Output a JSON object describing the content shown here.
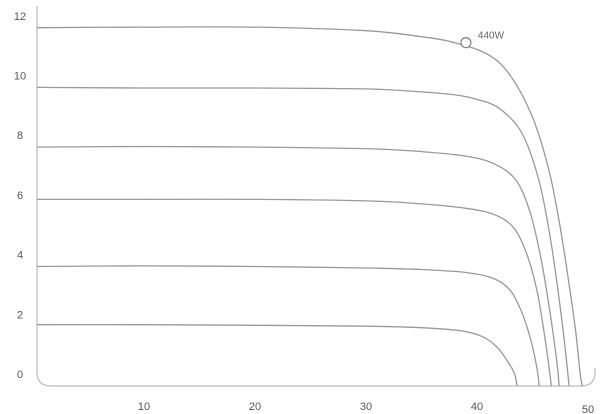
{
  "chart_data": {
    "type": "line",
    "title": "",
    "xlabel": "",
    "ylabel": "",
    "xlim": [
      0,
      52
    ],
    "ylim": [
      -0.5,
      12.5
    ],
    "grid": false,
    "legend": "none",
    "x_ticks": [
      10,
      20,
      30,
      40,
      50
    ],
    "y_ticks": [
      0,
      2,
      4,
      6,
      8,
      10,
      12
    ],
    "line_color": "#999999",
    "series": [
      {
        "points": [
          [
            0,
            11.6
          ],
          [
            10,
            11.62
          ],
          [
            20,
            11.62
          ],
          [
            30,
            11.5
          ],
          [
            35,
            11.3
          ],
          [
            38,
            11.1
          ],
          [
            41,
            10.7
          ],
          [
            43,
            10.0
          ],
          [
            45,
            8.6
          ],
          [
            46.5,
            6.8
          ],
          [
            47.5,
            4.9
          ],
          [
            48.3,
            3.0
          ],
          [
            48.9,
            1.4
          ],
          [
            49.3,
            0.0
          ],
          [
            49.5,
            -0.4
          ]
        ]
      },
      {
        "points": [
          [
            0,
            9.6
          ],
          [
            10,
            9.58
          ],
          [
            20,
            9.58
          ],
          [
            30,
            9.55
          ],
          [
            35,
            9.45
          ],
          [
            38,
            9.35
          ],
          [
            40,
            9.2
          ],
          [
            42,
            8.9
          ],
          [
            44,
            8.1
          ],
          [
            45.5,
            6.6
          ],
          [
            46.5,
            4.8
          ],
          [
            47.3,
            2.8
          ],
          [
            47.9,
            1.0
          ],
          [
            48.3,
            -0.4
          ]
        ]
      },
      {
        "points": [
          [
            0,
            7.6
          ],
          [
            10,
            7.62
          ],
          [
            20,
            7.6
          ],
          [
            30,
            7.55
          ],
          [
            35,
            7.45
          ],
          [
            39,
            7.3
          ],
          [
            41.5,
            7.05
          ],
          [
            43.5,
            6.5
          ],
          [
            44.8,
            5.4
          ],
          [
            45.8,
            3.8
          ],
          [
            46.6,
            2.0
          ],
          [
            47.2,
            0.4
          ],
          [
            47.4,
            -0.4
          ]
        ]
      },
      {
        "points": [
          [
            0,
            5.85
          ],
          [
            10,
            5.85
          ],
          [
            20,
            5.85
          ],
          [
            30,
            5.8
          ],
          [
            35,
            5.7
          ],
          [
            39,
            5.55
          ],
          [
            41.5,
            5.35
          ],
          [
            43.3,
            4.9
          ],
          [
            44.5,
            4.0
          ],
          [
            45.4,
            2.8
          ],
          [
            46.0,
            1.5
          ],
          [
            46.5,
            0.2
          ],
          [
            46.7,
            -0.4
          ]
        ]
      },
      {
        "points": [
          [
            0,
            3.6
          ],
          [
            10,
            3.62
          ],
          [
            20,
            3.6
          ],
          [
            30,
            3.55
          ],
          [
            35,
            3.5
          ],
          [
            39,
            3.4
          ],
          [
            41.5,
            3.2
          ],
          [
            43.0,
            2.8
          ],
          [
            44.0,
            2.1
          ],
          [
            44.8,
            1.2
          ],
          [
            45.4,
            0.2
          ],
          [
            45.6,
            -0.4
          ]
        ]
      },
      {
        "points": [
          [
            0,
            1.65
          ],
          [
            10,
            1.65
          ],
          [
            20,
            1.63
          ],
          [
            30,
            1.6
          ],
          [
            35,
            1.55
          ],
          [
            38.5,
            1.45
          ],
          [
            40.5,
            1.25
          ],
          [
            41.8,
            0.9
          ],
          [
            42.8,
            0.4
          ],
          [
            43.4,
            0.0
          ],
          [
            43.6,
            -0.4
          ]
        ]
      }
    ],
    "annotations": [
      {
        "label": "440W",
        "x": 39,
        "y": 11.1
      }
    ]
  }
}
